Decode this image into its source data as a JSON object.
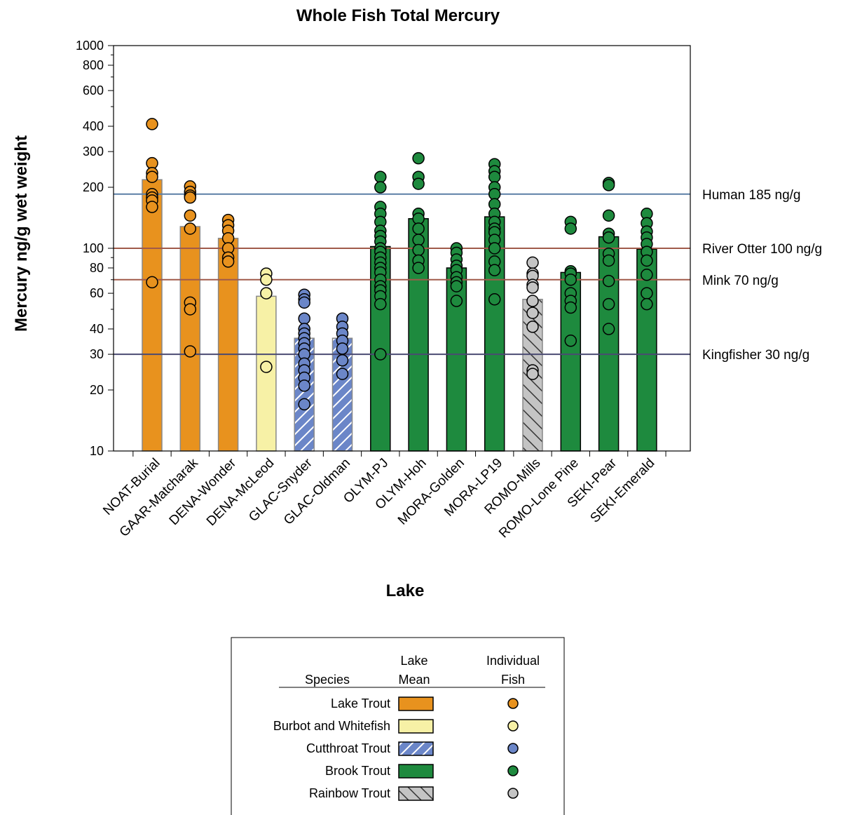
{
  "chart_data": {
    "type": "bar",
    "title": "Whole Fish Total Mercury",
    "xlabel": "Lake",
    "ylabel": "Mercury ng/g wet weight",
    "yscale": "log",
    "ylim": [
      10,
      1000
    ],
    "yticks": [
      10,
      20,
      30,
      40,
      60,
      80,
      100,
      200,
      300,
      400,
      600,
      800,
      1000
    ],
    "grid": false,
    "categories": [
      "NOAT-Burial",
      "GAAR-Matcharak",
      "DENA-Wonder",
      "DENA-McLeod",
      "GLAC-Snyder",
      "GLAC-Oldman",
      "OLYM-PJ",
      "OLYM-Hoh",
      "MORA-Golden",
      "MORA-LP19",
      "ROMO-Mills",
      "ROMO-Lone Pine",
      "SEKI-Pear",
      "SEKI-Emerald"
    ],
    "species": [
      "Lake Trout",
      "Lake Trout",
      "Lake Trout",
      "Burbot and Whitefish",
      "Cutthroat Trout",
      "Cutthroat Trout",
      "Brook Trout",
      "Brook Trout",
      "Brook Trout",
      "Brook Trout",
      "Rainbow Trout",
      "Brook Trout",
      "Brook Trout",
      "Brook Trout"
    ],
    "lake_means": [
      218,
      128,
      112,
      58,
      36,
      36,
      102,
      140,
      80,
      143,
      56,
      76,
      114,
      99
    ],
    "individual_fish": [
      [
        410,
        263,
        235,
        225,
        185,
        178,
        172,
        160,
        68
      ],
      [
        202,
        190,
        182,
        178,
        145,
        125,
        54,
        50,
        31
      ],
      [
        138,
        130,
        122,
        112,
        100,
        90,
        86
      ],
      [
        75,
        70,
        60,
        26
      ],
      [
        59,
        56,
        54,
        45,
        40,
        38,
        36,
        34,
        32,
        30,
        27,
        25,
        23,
        21,
        17
      ],
      [
        45,
        41,
        38,
        35,
        32,
        28,
        24
      ],
      [
        225,
        200,
        160,
        148,
        135,
        122,
        115,
        108,
        100,
        96,
        90,
        85,
        80,
        76,
        70,
        65,
        62,
        58,
        53,
        30
      ],
      [
        278,
        225,
        208,
        148,
        140,
        125,
        110,
        98,
        87,
        80
      ],
      [
        100,
        95,
        88,
        82,
        78,
        72,
        68,
        65,
        55
      ],
      [
        260,
        240,
        225,
        200,
        185,
        165,
        148,
        135,
        125,
        120,
        110,
        100,
        86,
        78,
        56
      ],
      [
        85,
        75,
        73,
        66,
        64,
        55,
        48,
        41,
        25,
        24
      ],
      [
        135,
        125,
        77,
        75,
        70,
        60,
        55,
        51,
        35
      ],
      [
        210,
        205,
        145,
        118,
        113,
        94,
        87,
        69,
        53,
        40
      ],
      [
        148,
        133,
        121,
        113,
        105,
        96,
        87,
        74,
        60,
        53
      ]
    ],
    "reference_lines": [
      {
        "value": 185,
        "label": "Human 185 ng/g",
        "color": "#5b7fa6"
      },
      {
        "value": 100,
        "label": "River Otter 100 ng/g",
        "color": "#a05a4a"
      },
      {
        "value": 70,
        "label": "Mink 70 ng/g",
        "color": "#a05a4a"
      },
      {
        "value": 30,
        "label": "Kingfisher 30 ng/g",
        "color": "#4a4a72"
      }
    ],
    "legend": {
      "placement": "bottom-center",
      "col_species": "Species",
      "col_mean": [
        "Lake",
        "Mean"
      ],
      "col_fish": [
        "Individual",
        "Fish"
      ],
      "entries": [
        {
          "label": "Lake Trout",
          "fill": "#e8921e",
          "pattern": "solid"
        },
        {
          "label": "Burbot and Whitefish",
          "fill": "#f7f1a6",
          "pattern": "solid"
        },
        {
          "label": "Cutthroat Trout",
          "fill": "#6b86c8",
          "pattern": "hatch-light"
        },
        {
          "label": "Brook Trout",
          "fill": "#1e8a3e",
          "pattern": "solid"
        },
        {
          "label": "Rainbow Trout",
          "fill": "#c4c4c4",
          "pattern": "hatch-dark"
        }
      ]
    }
  }
}
